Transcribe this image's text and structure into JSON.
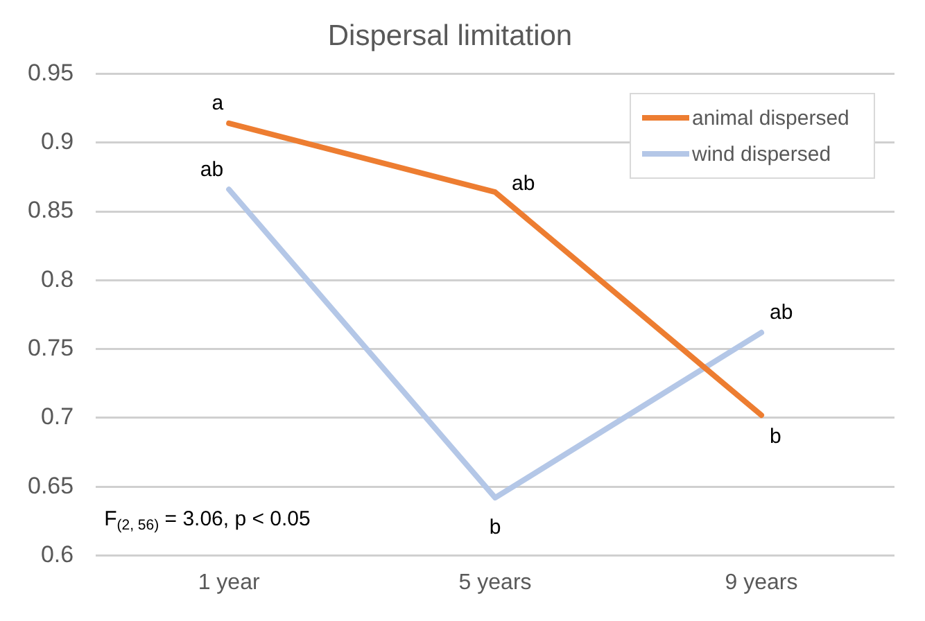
{
  "chart_data": {
    "type": "line",
    "title": "Dispersal limitation",
    "categories": [
      "1 year",
      "5 years",
      "9 years"
    ],
    "series": [
      {
        "name": "animal dispersed",
        "color": "#ed7d31",
        "values": [
          0.914,
          0.864,
          0.702
        ]
      },
      {
        "name": "wind dispersed",
        "color": "#b4c7e7",
        "values": [
          0.866,
          0.642,
          0.762
        ]
      }
    ],
    "ylim": [
      0.6,
      0.95
    ],
    "yticks": [
      0.6,
      0.65,
      0.7,
      0.75,
      0.8,
      0.85,
      0.9,
      0.95
    ],
    "grid": "y",
    "legend": "top right",
    "marker": "none",
    "line_style": "solid",
    "annotations": [
      {
        "text": "a",
        "x": "1 year",
        "y": 0.914
      },
      {
        "text": "ab",
        "x": "1 year",
        "y": 0.866
      },
      {
        "text": "ab",
        "x": "5 years",
        "y": 0.864
      },
      {
        "text": "b",
        "x": "5 years",
        "y": 0.642
      },
      {
        "text": "ab",
        "x": "9 years",
        "y": 0.762
      },
      {
        "text": "b",
        "x": "9 years",
        "y": 0.702
      },
      "F$_{(2, 56)}$ = 3.06, p < 0.05"
    ]
  }
}
